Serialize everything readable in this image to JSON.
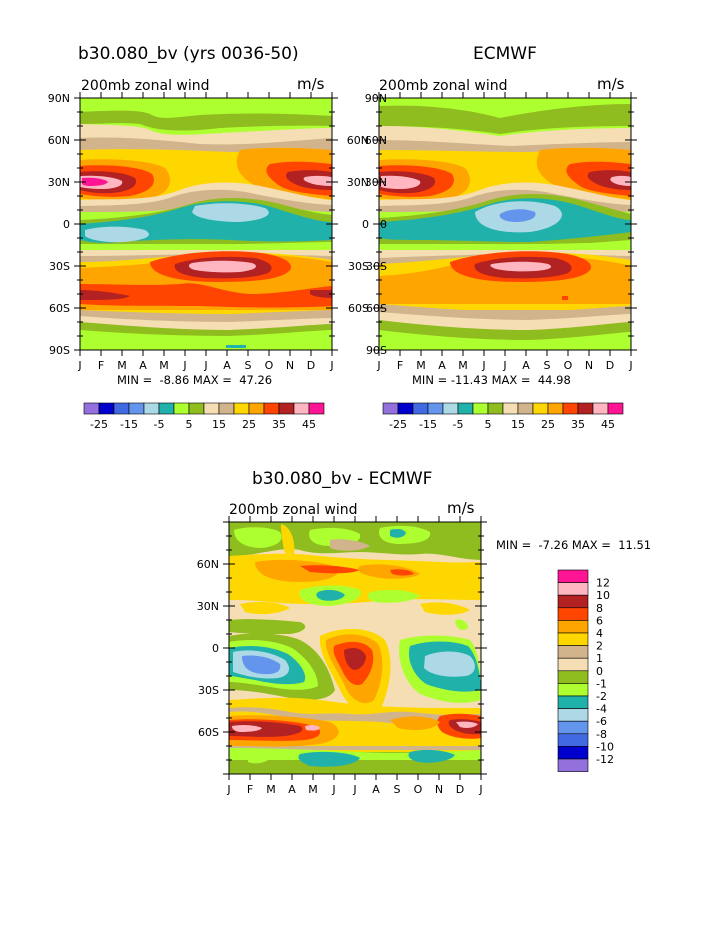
{
  "panels": [
    {
      "id": "model",
      "title": "b30.080_bv (yrs 0036-50)",
      "subtitle": "200mb zonal wind",
      "units": "m/s",
      "stats": "MIN =  -8.86 MAX =  47.26",
      "y_ticks": [
        "90N",
        "60N",
        "30N",
        "0",
        "30S",
        "60S",
        "90S"
      ],
      "x_ticks": [
        "J",
        "F",
        "M",
        "A",
        "M",
        "J",
        "J",
        "A",
        "S",
        "O",
        "N",
        "D",
        "J"
      ]
    },
    {
      "id": "ecmwf",
      "title": "ECMWF",
      "subtitle": "200mb zonal wind",
      "units": "m/s",
      "stats": "MIN = -11.43 MAX =  44.98",
      "y_ticks": [
        "60N",
        "30N",
        "0",
        "30S",
        "60S"
      ],
      "x_ticks": [
        "J",
        "F",
        "M",
        "A",
        "M",
        "J",
        "J",
        "A",
        "S",
        "O",
        "N",
        "D",
        "J"
      ]
    },
    {
      "id": "diff",
      "title": "b30.080_bv - ECMWF",
      "subtitle": "200mb zonal wind",
      "units": "m/s",
      "stats": "MIN =  -7.26 MAX =  11.51",
      "y_ticks": [
        "60N",
        "30N",
        "0",
        "30S",
        "60S"
      ],
      "x_ticks": [
        "J",
        "F",
        "M",
        "A",
        "M",
        "J",
        "J",
        "A",
        "S",
        "O",
        "N",
        "D",
        "J"
      ]
    }
  ],
  "full_colorbar": {
    "colors": [
      "#9370db",
      "#0000cd",
      "#4169e1",
      "#6495ed",
      "#add8e6",
      "#20b2aa",
      "#adff2f",
      "#8fbc1f",
      "#f5deb3",
      "#d2b48c",
      "#ffd700",
      "#ffa500",
      "#ff4500",
      "#b22222",
      "#ffb6c1",
      "#ff1493"
    ],
    "labels": [
      "-25",
      "-15",
      "-5",
      "5",
      "15",
      "25",
      "35",
      "45"
    ]
  },
  "diff_colorbar": {
    "colors": [
      "#ff1493",
      "#ffb6c1",
      "#b22222",
      "#ff4500",
      "#ffa500",
      "#ffd700",
      "#d2b48c",
      "#f5deb3",
      "#8fbc1f",
      "#adff2f",
      "#20b2aa",
      "#add8e6",
      "#6495ed",
      "#4169e1",
      "#0000cd",
      "#9370db"
    ],
    "labels": [
      "12",
      "10",
      "8",
      "6",
      "4",
      "2",
      "1",
      "0",
      "-1",
      "-2",
      "-4",
      "-6",
      "-8",
      "-10",
      "-12"
    ]
  },
  "chart_data": [
    {
      "type": "heatmap",
      "title": "b30.080_bv (yrs 0036-50)",
      "variable": "200mb zonal wind",
      "units": "m/s",
      "x": [
        "J",
        "F",
        "M",
        "A",
        "M",
        "J",
        "J",
        "A",
        "S",
        "O",
        "N",
        "D",
        "J"
      ],
      "y_range": [
        -90,
        90
      ],
      "min": -8.86,
      "max": 47.26,
      "contour_levels": [
        -25,
        -20,
        -15,
        -10,
        -5,
        0,
        5,
        10,
        15,
        20,
        25,
        30,
        35,
        40,
        45
      ]
    },
    {
      "type": "heatmap",
      "title": "ECMWF",
      "variable": "200mb zonal wind",
      "units": "m/s",
      "x": [
        "J",
        "F",
        "M",
        "A",
        "M",
        "J",
        "J",
        "A",
        "S",
        "O",
        "N",
        "D",
        "J"
      ],
      "y_range": [
        -90,
        90
      ],
      "min": -11.43,
      "max": 44.98,
      "contour_levels": [
        -25,
        -20,
        -15,
        -10,
        -5,
        0,
        5,
        10,
        15,
        20,
        25,
        30,
        35,
        40,
        45
      ]
    },
    {
      "type": "heatmap",
      "title": "b30.080_bv - ECMWF",
      "variable": "200mb zonal wind",
      "units": "m/s",
      "x": [
        "J",
        "F",
        "M",
        "A",
        "M",
        "J",
        "J",
        "A",
        "S",
        "O",
        "N",
        "D",
        "J"
      ],
      "y_range": [
        -90,
        90
      ],
      "min": -7.26,
      "max": 11.51,
      "contour_levels": [
        -12,
        -10,
        -8,
        -6,
        -4,
        -2,
        -1,
        0,
        1,
        2,
        4,
        6,
        8,
        10,
        12
      ]
    }
  ]
}
